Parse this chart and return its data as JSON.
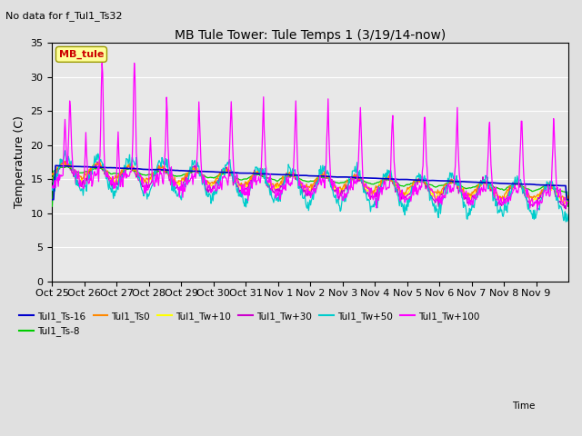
{
  "title": "MB Tule Tower: Tule Temps 1 (3/19/14-now)",
  "subtitle": "No data for f_Tul1_Ts32",
  "ylabel": "Temperature (C)",
  "xlabel": "Time",
  "ylim": [
    0,
    35
  ],
  "n_days": 16,
  "x_tick_labels": [
    "Oct 25",
    "Oct 26",
    "Oct 27",
    "Oct 28",
    "Oct 29",
    "Oct 30",
    "Oct 31",
    "Nov 1",
    "Nov 2",
    "Nov 3",
    "Nov 4",
    "Nov 5",
    "Nov 6",
    "Nov 7",
    "Nov 8",
    "Nov 9"
  ],
  "legend_entries": [
    {
      "label": "Tul1_Ts-16",
      "color": "#0000cc"
    },
    {
      "label": "Tul1_Ts-8",
      "color": "#00cc00"
    },
    {
      "label": "Tul1_Ts0",
      "color": "#ff8800"
    },
    {
      "label": "Tul1_Tw+10",
      "color": "#ffff00"
    },
    {
      "label": "Tul1_Tw+30",
      "color": "#cc00cc"
    },
    {
      "label": "Tul1_Tw+50",
      "color": "#00cccc"
    },
    {
      "label": "Tul1_Tw+100",
      "color": "#ff00ff"
    }
  ],
  "mb_tule_box_color": "#ffff99",
  "mb_tule_text_color": "#cc0000",
  "bg_color": "#e0e0e0",
  "plot_bg_color": "#e8e8e8",
  "grid_color": "#ffffff"
}
